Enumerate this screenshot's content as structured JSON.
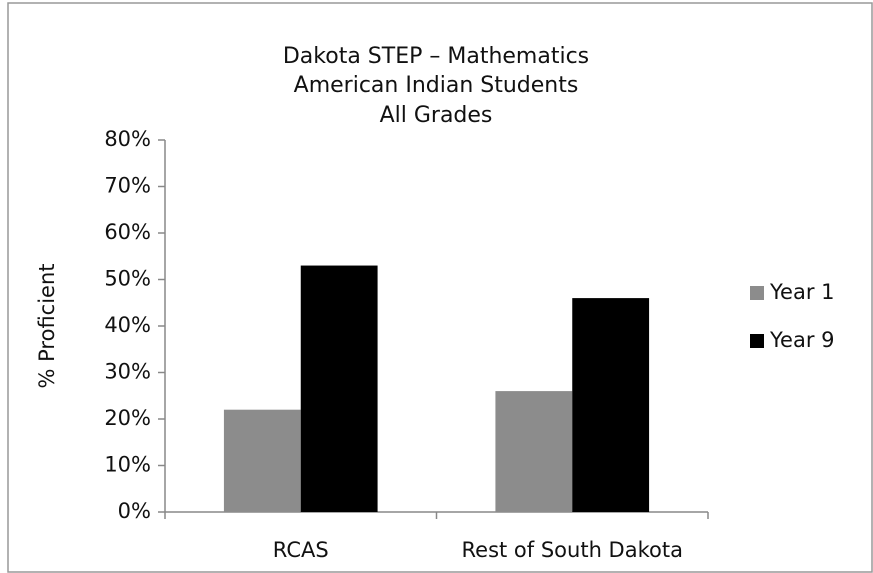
{
  "chart_data": {
    "type": "bar",
    "title": [
      "Dakota STEP – Mathematics",
      "American Indian Students",
      "All Grades"
    ],
    "y_label": "% Proficient",
    "categories": [
      "RCAS",
      "Rest of South Dakota"
    ],
    "series": [
      {
        "name": "Year 1",
        "color": "#8c8c8c",
        "values": [
          22,
          26
        ]
      },
      {
        "name": "Year 9",
        "color": "#000000",
        "values": [
          53,
          46
        ]
      }
    ],
    "ylim": [
      0,
      80
    ],
    "yticks": [
      {
        "value": 0,
        "label": "0%"
      },
      {
        "value": 10,
        "label": "10%"
      },
      {
        "value": 20,
        "label": "20%"
      },
      {
        "value": 30,
        "label": "30%"
      },
      {
        "value": 40,
        "label": "40%"
      },
      {
        "value": 50,
        "label": "50%"
      },
      {
        "value": 60,
        "label": "60%"
      },
      {
        "value": 70,
        "label": "70%"
      },
      {
        "value": 80,
        "label": "80%"
      }
    ],
    "grid": false,
    "legend": "right"
  }
}
